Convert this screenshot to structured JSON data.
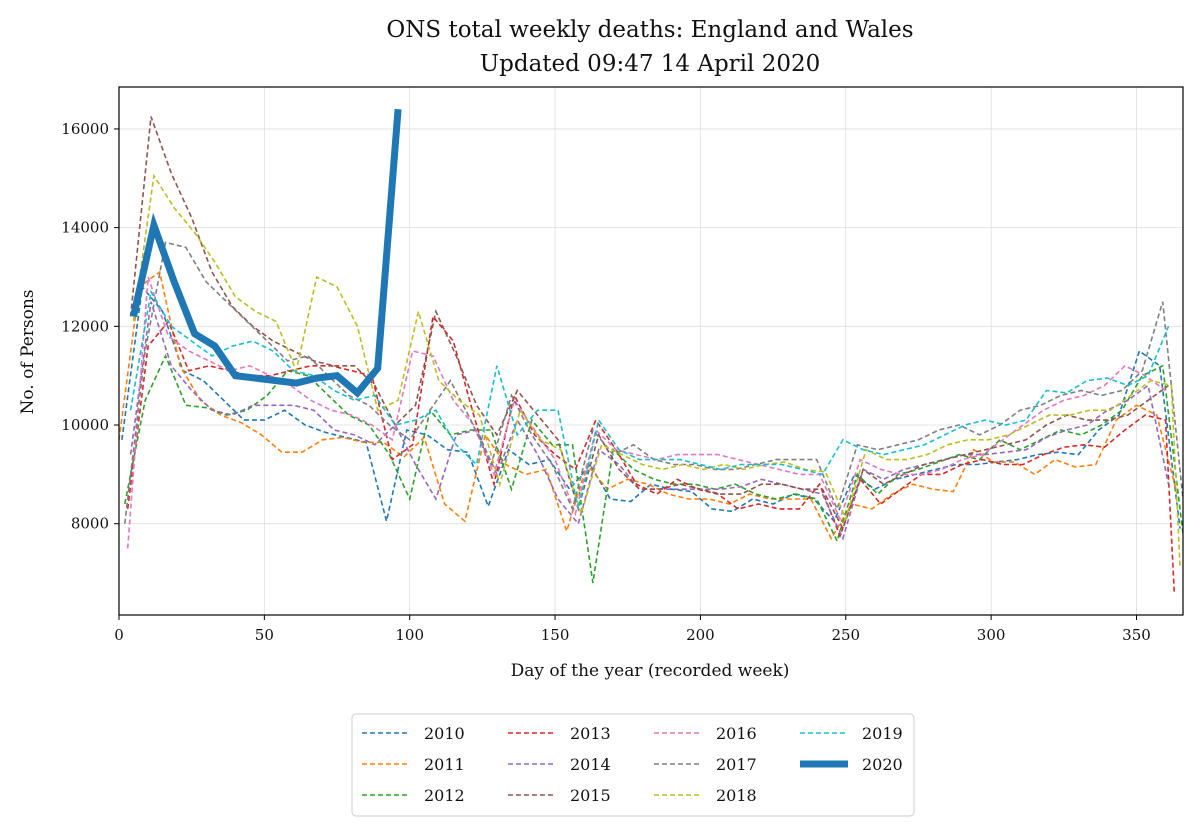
{
  "chart_data": {
    "type": "line",
    "title": "ONS total weekly deaths: England and Wales",
    "subtitle": "Updated 09:47 14 April 2020",
    "xlabel": "Day of the year (recorded week)",
    "ylabel": "No. of Persons",
    "xlim": [
      0,
      366
    ],
    "ylim": [
      6150,
      16850
    ],
    "x_ticks": [
      0,
      50,
      100,
      150,
      200,
      250,
      300,
      350
    ],
    "y_ticks": [
      8000,
      10000,
      12000,
      14000,
      16000
    ],
    "grid": true,
    "legend_position": "bottom-center",
    "series": [
      {
        "name": "2010",
        "color": "#1f77b4",
        "style": "dashed",
        "x": [
          1,
          8,
          15,
          22,
          29,
          36,
          43,
          50,
          57,
          64,
          71,
          78,
          85,
          92,
          99,
          106,
          113,
          120,
          127,
          134,
          141,
          148,
          155,
          162,
          169,
          176,
          183,
          190,
          197,
          204,
          211,
          218,
          225,
          232,
          239,
          246,
          253,
          260,
          267,
          274,
          281,
          288,
          295,
          302,
          309,
          316,
          323,
          330,
          337,
          344,
          351,
          358,
          365
        ],
        "y": [
          9700,
          12800,
          12300,
          11100,
          10900,
          10500,
          10100,
          10100,
          10300,
          10000,
          9850,
          9750,
          9650,
          8050,
          9900,
          9800,
          9500,
          9450,
          8350,
          9500,
          9200,
          9300,
          8700,
          9200,
          8500,
          8450,
          8800,
          8700,
          8650,
          8300,
          8250,
          8500,
          8400,
          8600,
          8500,
          8050,
          9000,
          8700,
          8900,
          9000,
          9100,
          9200,
          9200,
          9250,
          9300,
          9400,
          9450,
          9400,
          9900,
          10200,
          11500,
          11200,
          7900
        ]
      },
      {
        "name": "2011",
        "color": "#ff7f0e",
        "style": "dashed",
        "x": [
          0,
          7,
          14,
          21,
          28,
          35,
          42,
          49,
          56,
          63,
          70,
          77,
          84,
          91,
          98,
          105,
          112,
          119,
          126,
          133,
          140,
          147,
          154,
          161,
          168,
          175,
          182,
          189,
          196,
          203,
          210,
          217,
          224,
          231,
          238,
          245,
          252,
          259,
          266,
          273,
          280,
          287,
          294,
          301,
          308,
          315,
          322,
          329,
          336,
          343,
          350,
          357,
          364
        ],
        "y": [
          9700,
          12800,
          13100,
          11200,
          10500,
          10200,
          10050,
          9800,
          9450,
          9450,
          9700,
          9750,
          9650,
          9650,
          9350,
          9750,
          8400,
          8050,
          9800,
          9200,
          9000,
          9100,
          7850,
          9200,
          8700,
          8900,
          8800,
          8600,
          8500,
          8500,
          8400,
          8600,
          8500,
          8500,
          8500,
          7700,
          8400,
          8300,
          8600,
          8800,
          8700,
          8650,
          9500,
          9250,
          9250,
          9000,
          9300,
          9150,
          9200,
          10100,
          10400,
          10200,
          8600
        ]
      },
      {
        "name": "2012",
        "color": "#2ca02c",
        "style": "dashed",
        "x": [
          2,
          9,
          16,
          23,
          30,
          37,
          44,
          51,
          58,
          65,
          72,
          79,
          86,
          93,
          100,
          107,
          114,
          121,
          128,
          135,
          142,
          149,
          156,
          163,
          170,
          177,
          184,
          191,
          198,
          205,
          212,
          219,
          226,
          233,
          240,
          247,
          254,
          261,
          268,
          275,
          282,
          289,
          296,
          303,
          310,
          317,
          324,
          331,
          338,
          345,
          352,
          359,
          366
        ],
        "y": [
          8400,
          10500,
          11400,
          10400,
          10350,
          10200,
          10300,
          10600,
          11100,
          11000,
          10600,
          10200,
          10000,
          9400,
          8500,
          10300,
          9800,
          9900,
          9900,
          8700,
          10100,
          9600,
          9600,
          6800,
          9500,
          9100,
          8900,
          8800,
          8800,
          8700,
          8800,
          8600,
          8500,
          8600,
          8500,
          7650,
          9000,
          8600,
          9000,
          9100,
          9250,
          9400,
          9300,
          9700,
          9500,
          9700,
          9900,
          9800,
          10000,
          10300,
          11000,
          11200,
          7800
        ]
      },
      {
        "name": "2013",
        "color": "#d62728",
        "style": "dashed",
        "x": [
          3,
          10,
          17,
          24,
          31,
          38,
          45,
          52,
          59,
          66,
          73,
          80,
          87,
          94,
          101,
          108,
          115,
          122,
          129,
          136,
          143,
          150,
          157,
          164,
          171,
          178,
          185,
          192,
          199,
          206,
          213,
          220,
          227,
          234,
          241,
          248,
          255,
          262,
          269,
          276,
          283,
          290,
          297,
          304,
          311,
          318,
          325,
          332,
          339,
          346,
          353,
          360,
          363
        ],
        "y": [
          8300,
          11600,
          12100,
          11100,
          11200,
          11100,
          11000,
          11000,
          11100,
          11200,
          11200,
          11100,
          11000,
          9300,
          9600,
          12200,
          11700,
          10200,
          8800,
          10600,
          9800,
          9400,
          9100,
          10100,
          9500,
          8800,
          8600,
          8900,
          8700,
          8600,
          8300,
          8400,
          8300,
          8300,
          8800,
          7750,
          8900,
          8400,
          8700,
          9000,
          9000,
          9200,
          9300,
          9200,
          9200,
          9400,
          9550,
          9600,
          9550,
          9900,
          10200,
          10100,
          6600
        ]
      },
      {
        "name": "2014",
        "color": "#9467bd",
        "style": "dashed",
        "x": [
          4,
          11,
          18,
          25,
          32,
          39,
          46,
          53,
          60,
          67,
          74,
          81,
          88,
          95,
          102,
          109,
          116,
          123,
          130,
          137,
          144,
          151,
          158,
          165,
          172,
          179,
          186,
          193,
          200,
          207,
          214,
          221,
          228,
          235,
          242,
          249,
          256,
          263,
          270,
          277,
          284,
          291,
          298,
          305,
          312,
          319,
          326,
          333,
          340,
          347,
          354,
          361
        ],
        "y": [
          9400,
          12500,
          11200,
          10700,
          10300,
          10200,
          10400,
          10400,
          10400,
          10300,
          9900,
          9800,
          9600,
          10000,
          9200,
          8500,
          9800,
          9900,
          9000,
          10100,
          9400,
          8500,
          8000,
          9500,
          9200,
          8700,
          8700,
          8700,
          8700,
          8700,
          8750,
          8900,
          8800,
          8700,
          8600,
          7700,
          9100,
          8900,
          9100,
          9200,
          9300,
          9400,
          9400,
          9450,
          9500,
          9750,
          9900,
          10000,
          10300,
          10500,
          10800,
          8800
        ]
      },
      {
        "name": "2015",
        "color": "#8c564b",
        "style": "dashed",
        "x": [
          4,
          11,
          18,
          25,
          32,
          39,
          46,
          53,
          60,
          67,
          74,
          81,
          88,
          95,
          102,
          109,
          116,
          123,
          130,
          137,
          144,
          151,
          158,
          165,
          172,
          179,
          186,
          193,
          200,
          207,
          214,
          221,
          228,
          235,
          242,
          249,
          256,
          263,
          270,
          277,
          284,
          291,
          298,
          305,
          312,
          319,
          326,
          333,
          340,
          347,
          354,
          361
        ],
        "y": [
          12200,
          16250,
          15100,
          14200,
          13100,
          12400,
          12000,
          11700,
          11500,
          11300,
          11200,
          11200,
          10800,
          10000,
          10400,
          12300,
          11400,
          10400,
          9800,
          10700,
          10200,
          9700,
          8300,
          9800,
          9100,
          8700,
          8700,
          8800,
          8700,
          8600,
          8600,
          8800,
          8800,
          8700,
          8700,
          7900,
          9100,
          8800,
          9000,
          9200,
          9300,
          9400,
          9500,
          9600,
          9700,
          10000,
          10200,
          10100,
          10100,
          10200,
          10500,
          10800
        ]
      },
      {
        "name": "2016",
        "color": "#e377c2",
        "style": "dashed",
        "x": [
          3,
          10,
          17,
          24,
          31,
          38,
          45,
          52,
          59,
          66,
          73,
          80,
          87,
          94,
          101,
          108,
          115,
          122,
          129,
          136,
          143,
          150,
          157,
          164,
          171,
          178,
          185,
          192,
          199,
          206,
          213,
          220,
          227,
          234,
          241,
          248,
          255,
          262,
          269,
          276,
          283,
          290,
          297,
          304,
          311,
          318,
          325,
          332,
          339,
          346,
          353,
          360
        ],
        "y": [
          7500,
          13000,
          11800,
          11500,
          11300,
          11100,
          11200,
          11000,
          10800,
          10500,
          10300,
          10200,
          10000,
          9700,
          11500,
          11400,
          10500,
          10000,
          9000,
          10500,
          9900,
          9300,
          8200,
          9900,
          9500,
          9400,
          9300,
          9400,
          9400,
          9400,
          9300,
          9200,
          9100,
          9000,
          9000,
          8100,
          9300,
          9100,
          9000,
          9000,
          9100,
          9300,
          9400,
          9700,
          10000,
          10300,
          10500,
          10600,
          10800,
          11200,
          11000,
          10700
        ]
      },
      {
        "name": "2017",
        "color": "#7f7f7f",
        "style": "dashed",
        "x": [
          2,
          9,
          16,
          23,
          30,
          37,
          44,
          51,
          58,
          65,
          72,
          79,
          86,
          93,
          100,
          107,
          114,
          121,
          128,
          135,
          142,
          149,
          156,
          163,
          170,
          177,
          184,
          191,
          198,
          205,
          212,
          219,
          226,
          233,
          240,
          247,
          254,
          261,
          268,
          275,
          282,
          289,
          296,
          303,
          310,
          317,
          324,
          331,
          338,
          345,
          352,
          359,
          366
        ],
        "y": [
          8000,
          11500,
          13700,
          13600,
          12900,
          12500,
          12100,
          11700,
          11300,
          11400,
          11000,
          10600,
          10400,
          10000,
          9700,
          10300,
          10900,
          10100,
          9200,
          10600,
          9800,
          9200,
          8300,
          9900,
          9400,
          9600,
          9300,
          9200,
          9200,
          9100,
          9100,
          9200,
          9300,
          9300,
          9300,
          8300,
          9600,
          9500,
          9600,
          9700,
          9900,
          10000,
          9800,
          10000,
          10300,
          10400,
          10600,
          10700,
          10600,
          10700,
          11100,
          12500,
          8500
        ]
      },
      {
        "name": "2018",
        "color": "#bcbd22",
        "style": "dashed",
        "x": [
          5,
          12,
          19,
          26,
          33,
          40,
          47,
          54,
          61,
          68,
          75,
          82,
          89,
          96,
          103,
          110,
          117,
          124,
          131,
          138,
          145,
          152,
          159,
          166,
          173,
          180,
          187,
          194,
          201,
          208,
          215,
          222,
          229,
          236,
          243,
          250,
          257,
          264,
          271,
          278,
          285,
          292,
          299,
          306,
          313,
          320,
          327,
          334,
          341,
          348,
          355,
          362,
          365
        ],
        "y": [
          12100,
          15050,
          14400,
          13900,
          13300,
          12600,
          12300,
          12100,
          11100,
          13000,
          12800,
          12000,
          10300,
          10500,
          12300,
          10900,
          10500,
          10200,
          8800,
          10300,
          9700,
          9500,
          8200,
          9600,
          9400,
          9200,
          9100,
          9200,
          9100,
          9200,
          9100,
          9200,
          9250,
          9100,
          9050,
          8100,
          9500,
          9300,
          9300,
          9400,
          9600,
          9700,
          9700,
          9800,
          10000,
          10200,
          10200,
          10300,
          10300,
          10600,
          10900,
          10800,
          7100
        ]
      },
      {
        "name": "2019",
        "color": "#17becf",
        "style": "dashed",
        "x": [
          4,
          11,
          18,
          25,
          32,
          39,
          46,
          53,
          60,
          67,
          74,
          81,
          88,
          95,
          102,
          109,
          116,
          123,
          130,
          137,
          144,
          151,
          158,
          165,
          172,
          179,
          186,
          193,
          200,
          207,
          214,
          221,
          228,
          235,
          242,
          249,
          256,
          263,
          270,
          277,
          284,
          291,
          298,
          305,
          312,
          319,
          326,
          333,
          340,
          347,
          354,
          361
        ],
        "y": [
          10300,
          12700,
          12000,
          11700,
          11400,
          11600,
          11700,
          11500,
          11100,
          11000,
          10700,
          10500,
          10600,
          10000,
          10100,
          10300,
          9600,
          9200,
          11200,
          9800,
          10300,
          10300,
          8300,
          10100,
          9500,
          9300,
          9300,
          9300,
          9200,
          9100,
          9200,
          9200,
          9200,
          9100,
          9000,
          9700,
          9500,
          9400,
          9500,
          9600,
          9800,
          10000,
          10100,
          10000,
          10100,
          10700,
          10650,
          10900,
          10950,
          10800,
          11000,
          12000
        ]
      },
      {
        "name": "2020",
        "color": "#1f77b4",
        "style": "solid",
        "x": [
          5,
          12,
          19,
          26,
          33,
          40,
          47,
          54,
          61,
          68,
          75,
          82,
          89,
          96
        ],
        "y": [
          12200,
          14050,
          12900,
          11850,
          11600,
          11000,
          10950,
          10900,
          10850,
          10950,
          11000,
          10650,
          11150,
          16400
        ]
      }
    ]
  }
}
